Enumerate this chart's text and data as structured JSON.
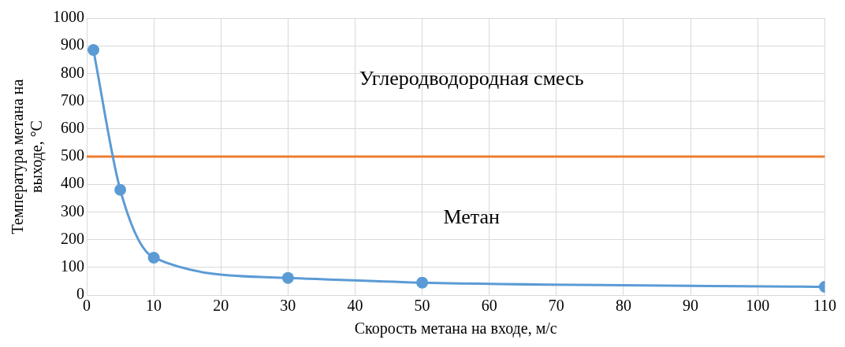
{
  "chart_data": {
    "type": "line",
    "xlabel": "Скорость метана на входе, м/с",
    "ylabel": "Температура метана на выходе, °С",
    "x": [
      1,
      5,
      10,
      30,
      50,
      110
    ],
    "series": [
      {
        "color": "#5b9bd5",
        "values": [
          885,
          380,
          135,
          62,
          45,
          30
        ]
      }
    ],
    "xlim": [
      0,
      110
    ],
    "xticks": [
      0,
      10,
      20,
      30,
      40,
      50,
      60,
      70,
      80,
      90,
      100,
      110
    ],
    "ylim": [
      0,
      1000
    ],
    "yticks": [
      0,
      100,
      200,
      300,
      400,
      500,
      600,
      700,
      800,
      900,
      1000
    ],
    "ref_lines": [
      {
        "axis": "y",
        "value": 500,
        "color": "#ed7d31"
      }
    ],
    "annotations": [
      "Углеродводородная смесь",
      "Метан"
    ],
    "grid": true,
    "legend": false,
    "marker": "circle",
    "line_style": "solid"
  }
}
